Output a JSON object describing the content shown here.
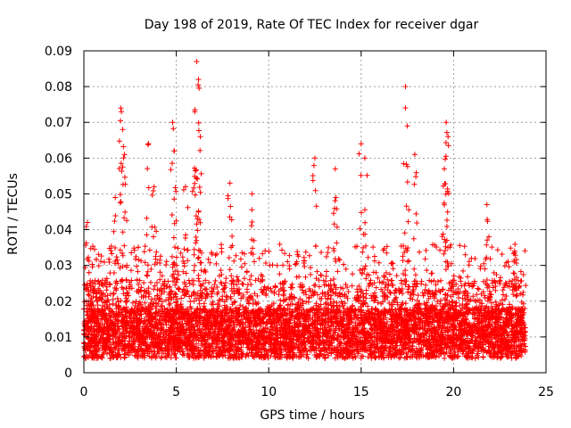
{
  "chart_data": {
    "type": "scatter",
    "title": "Day 198 of 2019, Rate Of TEC Index for receiver dgar",
    "xlabel": "GPS time / hours",
    "ylabel": "ROTI / TECUs",
    "xlim": [
      0,
      25
    ],
    "ylim": [
      0,
      0.09
    ],
    "xticks": [
      0,
      5,
      10,
      15,
      20,
      25
    ],
    "xtick_labels": [
      "0",
      "5",
      "10",
      "15",
      "20",
      "25"
    ],
    "yticks": [
      0,
      0.01,
      0.02,
      0.03,
      0.04,
      0.05,
      0.06,
      0.07,
      0.08,
      0.09
    ],
    "ytick_labels": [
      "0",
      "0.01",
      "0.02",
      "0.03",
      "0.04",
      "0.05",
      "0.06",
      "0.07",
      "0.08",
      "0.09"
    ],
    "grid": true,
    "marker": "+",
    "series": [
      {
        "name": "ROTI",
        "color": "#ff0000",
        "data_x_range": [
          0,
          23.9
        ],
        "peaks": [
          {
            "x": 0.2,
            "y": 0.042
          },
          {
            "x": 1.7,
            "y": 0.049
          },
          {
            "x": 2.0,
            "y": 0.074
          },
          {
            "x": 2.1,
            "y": 0.068
          },
          {
            "x": 2.2,
            "y": 0.061
          },
          {
            "x": 3.5,
            "y": 0.064
          },
          {
            "x": 3.8,
            "y": 0.052
          },
          {
            "x": 4.8,
            "y": 0.07
          },
          {
            "x": 4.9,
            "y": 0.062
          },
          {
            "x": 5.5,
            "y": 0.052
          },
          {
            "x": 6.1,
            "y": 0.087
          },
          {
            "x": 6.2,
            "y": 0.082
          },
          {
            "x": 6.0,
            "y": 0.073
          },
          {
            "x": 6.3,
            "y": 0.066
          },
          {
            "x": 7.9,
            "y": 0.053
          },
          {
            "x": 9.1,
            "y": 0.05
          },
          {
            "x": 12.5,
            "y": 0.06
          },
          {
            "x": 13.6,
            "y": 0.057
          },
          {
            "x": 15.0,
            "y": 0.064
          },
          {
            "x": 15.2,
            "y": 0.06
          },
          {
            "x": 17.4,
            "y": 0.08
          },
          {
            "x": 17.5,
            "y": 0.069
          },
          {
            "x": 17.9,
            "y": 0.061
          },
          {
            "x": 19.6,
            "y": 0.07
          },
          {
            "x": 19.7,
            "y": 0.066
          },
          {
            "x": 19.5,
            "y": 0.057
          },
          {
            "x": 21.8,
            "y": 0.047
          },
          {
            "x": 23.3,
            "y": 0.034
          }
        ]
      }
    ]
  }
}
